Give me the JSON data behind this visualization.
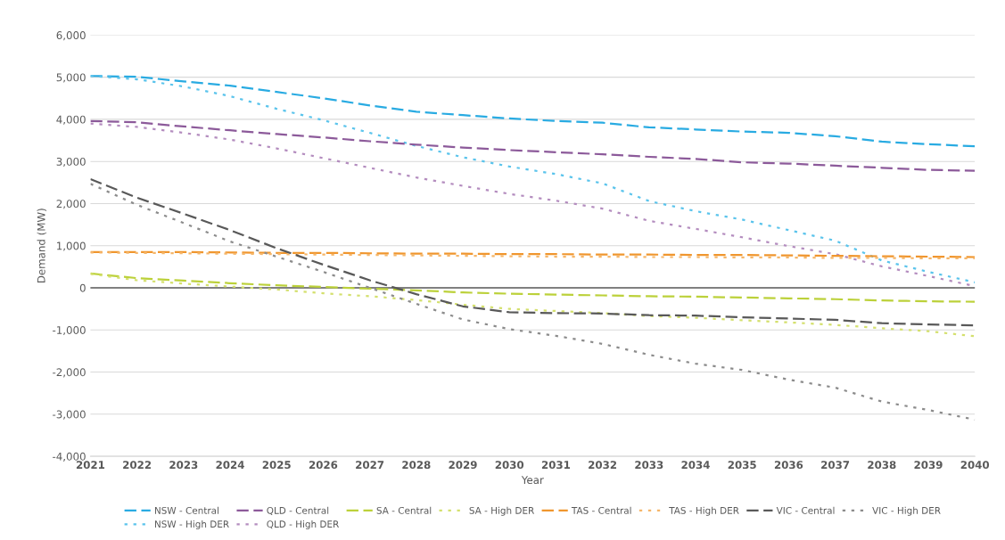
{
  "chart_data": {
    "type": "line",
    "xlabel": "Year",
    "ylabel": "Demand (MW)",
    "x": [
      2021,
      2022,
      2023,
      2024,
      2025,
      2026,
      2027,
      2028,
      2029,
      2030,
      2031,
      2032,
      2033,
      2034,
      2035,
      2036,
      2037,
      2038,
      2039,
      2040
    ],
    "xlim": [
      2021,
      2040
    ],
    "xticks": [
      2021,
      2022,
      2023,
      2024,
      2025,
      2026,
      2027,
      2028,
      2029,
      2030,
      2031,
      2032,
      2033,
      2034,
      2035,
      2036,
      2037,
      2038,
      2039,
      2040
    ],
    "ylim": [
      -4000,
      6000
    ],
    "yticks": [
      {
        "value": -4000,
        "label": "-4,000"
      },
      {
        "value": -3000,
        "label": "-3,000"
      },
      {
        "value": -2000,
        "label": "-2,000"
      },
      {
        "value": -1000,
        "label": "-1,000"
      },
      0,
      {
        "value": 1000,
        "label": "1,000"
      },
      {
        "value": 2000,
        "label": "2,000"
      },
      {
        "value": 3000,
        "label": "3,000"
      },
      {
        "value": 4000,
        "label": "4,000"
      },
      {
        "value": 5000,
        "label": "5,000"
      },
      {
        "value": 6000,
        "label": "6,000"
      }
    ],
    "grid": "y",
    "legend": "bottom",
    "marker": "none",
    "ref_lines": [
      {
        "axis": "y",
        "value": 0,
        "label": null,
        "color": "#808080",
        "line_style": "solid"
      }
    ],
    "series": [
      {
        "name": "NSW - Central",
        "color": "#29abe2",
        "line_style": "dashed",
        "values": [
          5030,
          5010,
          4900,
          4800,
          4650,
          4500,
          4330,
          4180,
          4100,
          4020,
          3960,
          3920,
          3810,
          3760,
          3710,
          3680,
          3600,
          3470,
          3410,
          3360
        ]
      },
      {
        "name": "NSW - High DER",
        "color": "#5bc4ec",
        "line_style": "dotted",
        "values": [
          5030,
          4950,
          4780,
          4550,
          4250,
          3980,
          3680,
          3370,
          3100,
          2880,
          2700,
          2480,
          2060,
          1820,
          1620,
          1370,
          1120,
          650,
          380,
          130
        ]
      },
      {
        "name": "QLD - Central",
        "color": "#8c5a9a",
        "line_style": "dashed",
        "values": [
          3960,
          3930,
          3830,
          3740,
          3650,
          3570,
          3480,
          3400,
          3330,
          3270,
          3220,
          3170,
          3110,
          3060,
          2980,
          2950,
          2900,
          2850,
          2800,
          2780
        ]
      },
      {
        "name": "QLD - High DER",
        "color": "#b48dbf",
        "line_style": "dotted",
        "values": [
          3900,
          3820,
          3680,
          3520,
          3310,
          3080,
          2850,
          2620,
          2420,
          2230,
          2070,
          1880,
          1590,
          1400,
          1200,
          990,
          800,
          510,
          280,
          40
        ]
      },
      {
        "name": "SA - Central",
        "color": "#bcd13a",
        "line_style": "dashed",
        "values": [
          340,
          230,
          170,
          110,
          60,
          20,
          -20,
          -60,
          -110,
          -140,
          -160,
          -180,
          -200,
          -210,
          -230,
          -250,
          -270,
          -300,
          -320,
          -330
        ]
      },
      {
        "name": "SA - High DER",
        "color": "#d4e06e",
        "line_style": "dotted",
        "values": [
          330,
          180,
          100,
          30,
          -40,
          -130,
          -200,
          -290,
          -400,
          -500,
          -550,
          -600,
          -670,
          -710,
          -770,
          -820,
          -880,
          -960,
          -1030,
          -1150
        ]
      },
      {
        "name": "TAS - Central",
        "color": "#f0962e",
        "line_style": "dashed",
        "values": [
          850,
          850,
          850,
          840,
          830,
          830,
          820,
          810,
          810,
          800,
          800,
          790,
          790,
          780,
          780,
          770,
          760,
          750,
          740,
          730
        ]
      },
      {
        "name": "TAS - High DER",
        "color": "#f5b66a",
        "line_style": "dotted",
        "values": [
          840,
          830,
          820,
          810,
          800,
          790,
          780,
          770,
          760,
          750,
          740,
          740,
          730,
          730,
          720,
          720,
          710,
          710,
          700,
          700
        ]
      },
      {
        "name": "VIC - Central",
        "color": "#595959",
        "line_style": "dashed",
        "values": [
          2580,
          2140,
          1760,
          1370,
          940,
          550,
          180,
          -150,
          -440,
          -580,
          -600,
          -610,
          -650,
          -660,
          -700,
          -730,
          -760,
          -840,
          -870,
          -890
        ]
      },
      {
        "name": "VIC - High DER",
        "color": "#8c8c8c",
        "line_style": "dotted",
        "values": [
          2470,
          1970,
          1540,
          1100,
          740,
          380,
          0,
          -380,
          -750,
          -980,
          -1140,
          -1330,
          -1590,
          -1800,
          -1950,
          -2180,
          -2370,
          -2700,
          -2900,
          -3130
        ]
      }
    ]
  }
}
